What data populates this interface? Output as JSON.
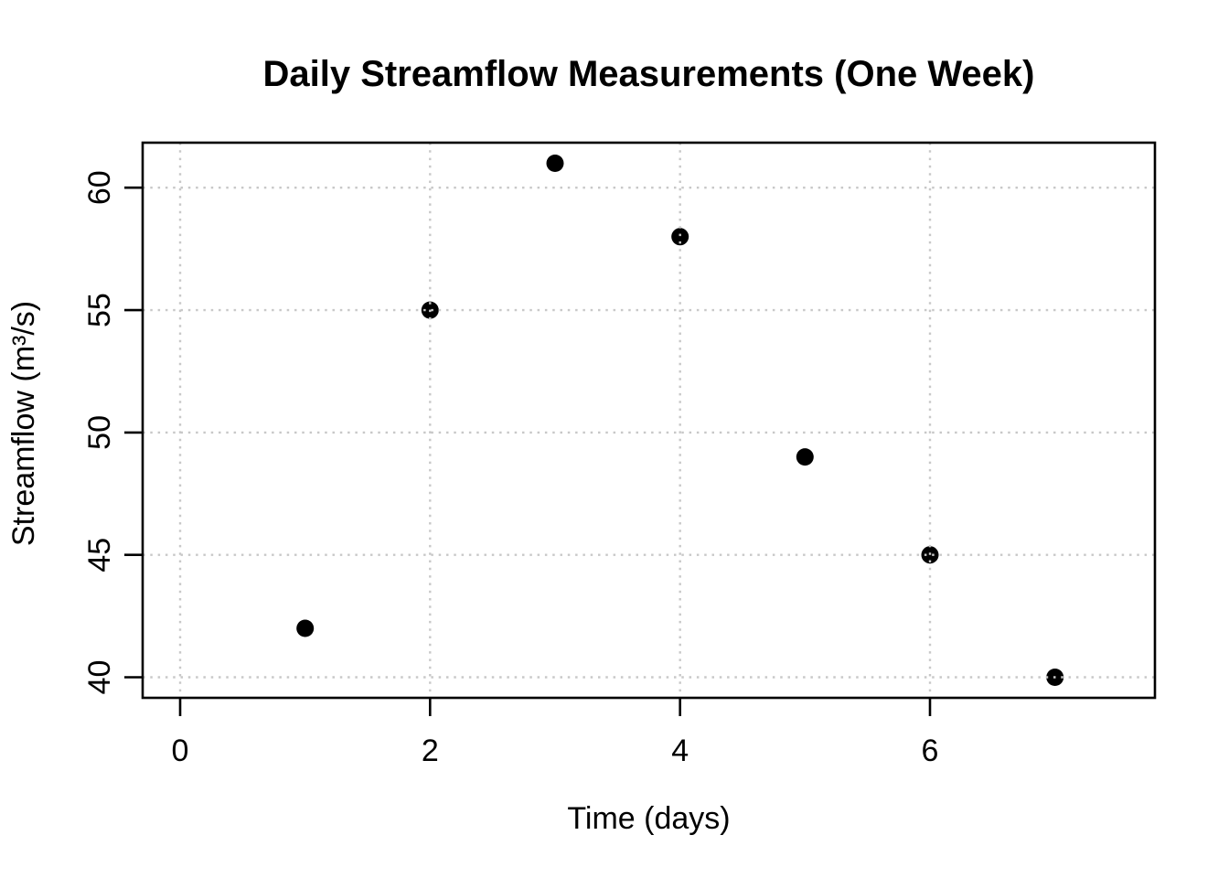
{
  "chart_data": {
    "type": "scatter",
    "title": "Daily Streamflow Measurements (One Week)",
    "xlabel": "Time (days)",
    "ylabel": "Streamflow (m³/s)",
    "x": [
      1,
      2,
      3,
      4,
      5,
      6,
      7
    ],
    "y": [
      42,
      55,
      61,
      58,
      49,
      45,
      40
    ],
    "xticks": {
      "values": [
        0,
        2,
        4,
        6
      ],
      "labels": [
        "0",
        "2",
        "4",
        "6"
      ]
    },
    "yticks": {
      "values": [
        40,
        45,
        50,
        55,
        60
      ],
      "labels": [
        "40",
        "45",
        "50",
        "55",
        "60"
      ]
    },
    "xlim": [
      -0.3,
      7.8
    ],
    "ylim": [
      39.16,
      61.84
    ],
    "grid": "dotted",
    "grid_on_top_of_points": true,
    "legend_position": "none",
    "colors": {
      "background": "#ffffff",
      "point": "#000000",
      "axis": "#000000",
      "grid": "#c8c8c8",
      "text": "#000000"
    }
  }
}
